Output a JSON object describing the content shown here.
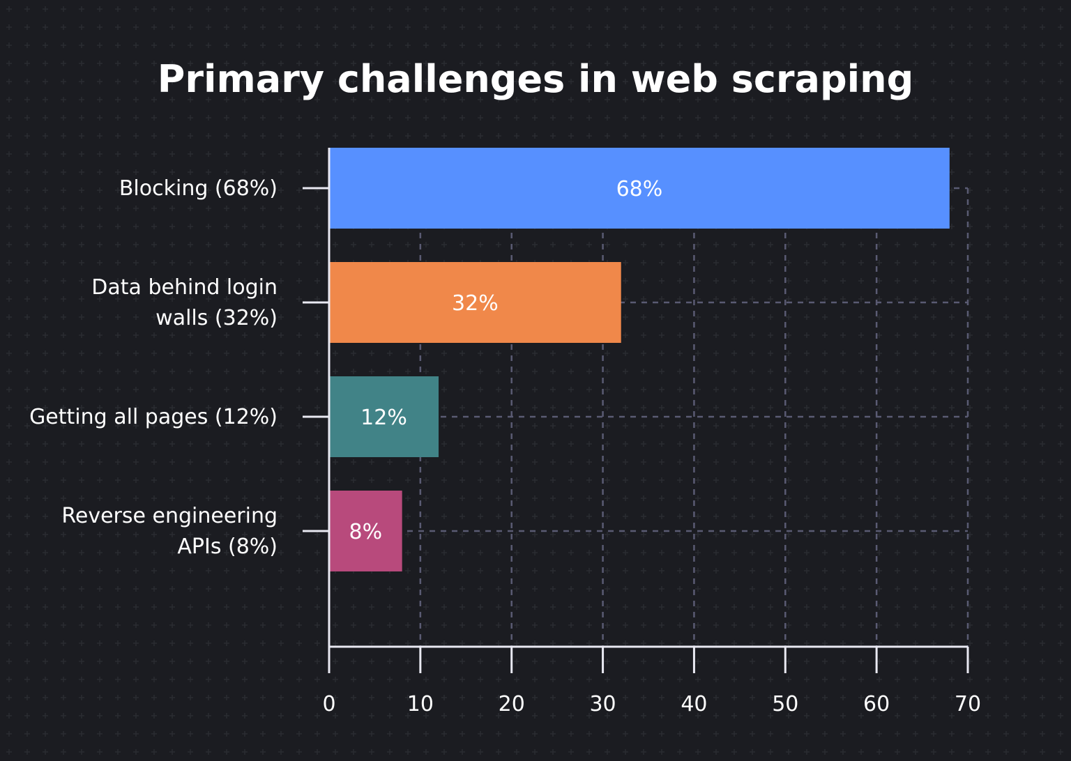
{
  "chart_data": {
    "type": "bar",
    "orientation": "horizontal",
    "title": "Primary challenges in web scraping",
    "xlabel": "",
    "ylabel": "",
    "xlim": [
      0,
      70
    ],
    "x_ticks": [
      0,
      10,
      20,
      30,
      40,
      50,
      60,
      70
    ],
    "grid": true,
    "legend": "none",
    "categories": [
      [
        "Blocking (68%)"
      ],
      [
        "Data behind login",
        "walls (32%)"
      ],
      [
        "Getting all pages (12%)"
      ],
      [
        "Reverse engineering",
        "APIs (8%)"
      ]
    ],
    "values": [
      68,
      32,
      12,
      8
    ],
    "data_labels": [
      "68%",
      "32%",
      "12%",
      "8%"
    ],
    "colors": [
      "#5790ff",
      "#f0884a",
      "#418387",
      "#b84a7c"
    ]
  }
}
